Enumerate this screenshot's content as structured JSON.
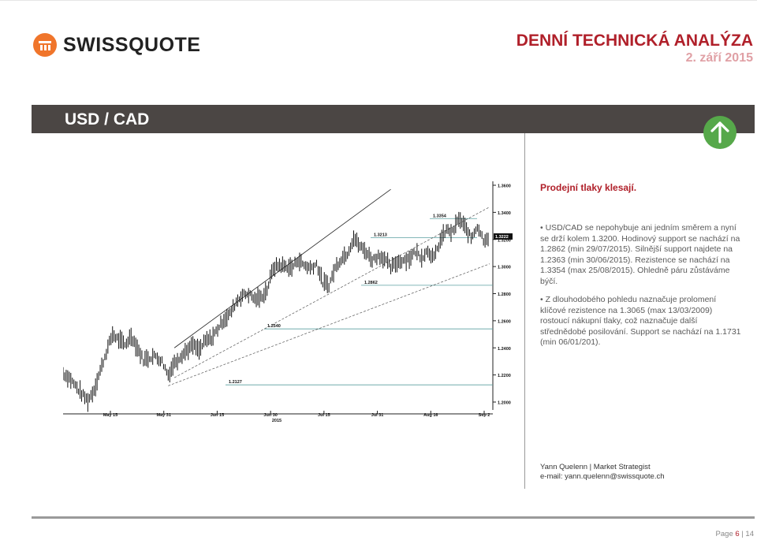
{
  "header": {
    "logo_text": "SWISSQUOTE",
    "report_title": "DENNÍ TECHNICKÁ ANALÝZA",
    "report_date": "2. září 2015"
  },
  "pair": {
    "label": "USD / CAD",
    "trend": "arrow-up-icon",
    "trend_color": "#56a84a"
  },
  "commentary": {
    "headline": "Prodejní tlaky klesají.",
    "bullets": [
      "• USD/CAD se nepohybuje ani jedním směrem a nyní se drží kolem 1.3200. Hodinový support se nachází na 1.2862 (min 29/07/2015). Silnější support najdete na 1.2363 (min 30/06/2015). Rezistence se nachází na 1.3354 (max 25/08/2015). Ohledně páru zůstáváme býčí.",
      "• Z dlouhodobého pohledu naznačuje prolomení klíčové rezistence na 1.3065 (max 13/03/2009) rostoucí nákupní tlaky, což naznačuje další střednědobé posilování. Support se nachází na 1.1731 (min 06/01/201)."
    ]
  },
  "author": {
    "name_line": "Yann Quelenn | Market Strategist",
    "email_line": "e-mail: yann.quelenn@swissquote.ch"
  },
  "footer": {
    "page_prefix": "Page",
    "page_current": "6",
    "page_sep": "|",
    "page_total": "14"
  },
  "colors": {
    "accent": "#b0202a",
    "bar": "#4b4644",
    "support_line": "#5a9fa0"
  },
  "chart_data": {
    "type": "line",
    "subtype": "ohlc",
    "ylim": [
      1.2,
      1.36
    ],
    "y_ticks": [
      "1.2000",
      "1.2200",
      "1.2400",
      "1.2600",
      "1.2800",
      "1.3000",
      "1.3200",
      "1.3400",
      "1.3600"
    ],
    "x_ticks": [
      "May 15",
      "May 31",
      "Jun 15",
      "Jun 30",
      "Jul 15",
      "Jul 31",
      "Aug 16",
      "Sep 2"
    ],
    "x_year_label": "2015",
    "last_price": "1.3222",
    "levels": [
      {
        "label": "1.3354",
        "value": 1.3354
      },
      {
        "label": "1.3213",
        "value": 1.3213
      },
      {
        "label": "1.2862",
        "value": 1.2862
      },
      {
        "label": "1.2540",
        "value": 1.254
      },
      {
        "label": "1.2127",
        "value": 1.2127
      }
    ],
    "price_path": [
      [
        0,
        1.221
      ],
      [
        4,
        1.218
      ],
      [
        8,
        1.212
      ],
      [
        12,
        1.206
      ],
      [
        16,
        1.201
      ],
      [
        20,
        1.209
      ],
      [
        24,
        1.223
      ],
      [
        28,
        1.237
      ],
      [
        32,
        1.25
      ],
      [
        36,
        1.246
      ],
      [
        40,
        1.242
      ],
      [
        44,
        1.249
      ],
      [
        48,
        1.24
      ],
      [
        52,
        1.231
      ],
      [
        56,
        1.233
      ],
      [
        60,
        1.234
      ],
      [
        64,
        1.23
      ],
      [
        68,
        1.22
      ],
      [
        72,
        1.229
      ],
      [
        76,
        1.234
      ],
      [
        80,
        1.238
      ],
      [
        84,
        1.242
      ],
      [
        88,
        1.238
      ],
      [
        92,
        1.245
      ],
      [
        96,
        1.247
      ],
      [
        100,
        1.254
      ],
      [
        104,
        1.261
      ],
      [
        108,
        1.265
      ],
      [
        112,
        1.274
      ],
      [
        116,
        1.279
      ],
      [
        120,
        1.28
      ],
      [
        124,
        1.276
      ],
      [
        128,
        1.277
      ],
      [
        132,
        1.283
      ],
      [
        136,
        1.299
      ],
      [
        140,
        1.301
      ],
      [
        144,
        1.3
      ],
      [
        148,
        1.299
      ],
      [
        152,
        1.305
      ],
      [
        156,
        1.301
      ],
      [
        160,
        1.299
      ],
      [
        164,
        1.302
      ],
      [
        168,
        1.288
      ],
      [
        172,
        1.2862
      ],
      [
        176,
        1.299
      ],
      [
        180,
        1.306
      ],
      [
        184,
        1.31
      ],
      [
        188,
        1.3213
      ],
      [
        192,
        1.315
      ],
      [
        196,
        1.311
      ],
      [
        200,
        1.305
      ],
      [
        204,
        1.308
      ],
      [
        208,
        1.306
      ],
      [
        212,
        1.299
      ],
      [
        216,
        1.303
      ],
      [
        220,
        1.305
      ],
      [
        224,
        1.306
      ],
      [
        228,
        1.311
      ],
      [
        232,
        1.307
      ],
      [
        236,
        1.312
      ],
      [
        240,
        1.306
      ],
      [
        244,
        1.319
      ],
      [
        248,
        1.327
      ],
      [
        252,
        1.325
      ],
      [
        256,
        1.3354
      ],
      [
        260,
        1.329
      ],
      [
        264,
        1.321
      ],
      [
        268,
        1.33
      ],
      [
        272,
        1.32
      ],
      [
        276,
        1.3222
      ]
    ]
  }
}
